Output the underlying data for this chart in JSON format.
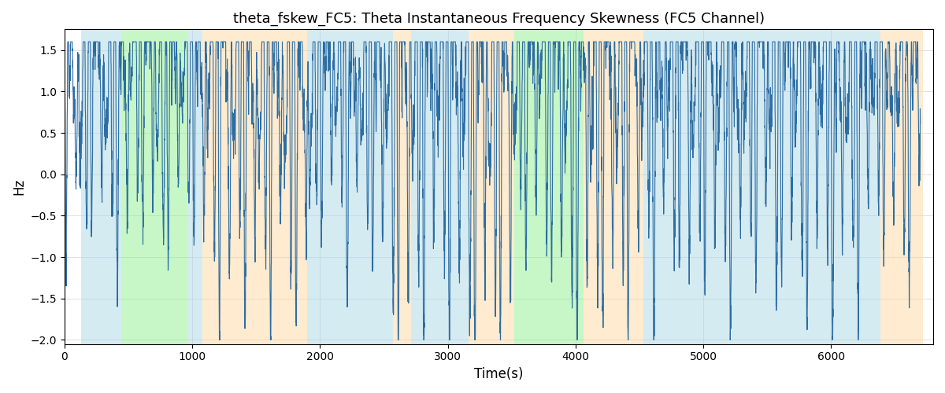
{
  "title": "theta_fskew_FC5: Theta Instantaneous Frequency Skewness (FC5 Channel)",
  "xlabel": "Time(s)",
  "ylabel": "Hz",
  "xlim": [
    0,
    6800
  ],
  "ylim": [
    -2.05,
    1.75
  ],
  "yticks": [
    -2.0,
    -1.5,
    -1.0,
    -0.5,
    0.0,
    0.5,
    1.0,
    1.5
  ],
  "xticks": [
    0,
    1000,
    2000,
    3000,
    4000,
    5000,
    6000
  ],
  "line_color": "#2d6da3",
  "line_width": 0.8,
  "bg_segments": [
    {
      "xstart": 130,
      "xend": 450,
      "color": "#add8e6",
      "alpha": 0.5
    },
    {
      "xstart": 450,
      "xend": 970,
      "color": "#90ee90",
      "alpha": 0.5
    },
    {
      "xstart": 970,
      "xend": 1080,
      "color": "#add8e6",
      "alpha": 0.5
    },
    {
      "xstart": 1080,
      "xend": 1900,
      "color": "#ffd9a0",
      "alpha": 0.5
    },
    {
      "xstart": 1900,
      "xend": 2570,
      "color": "#add8e6",
      "alpha": 0.5
    },
    {
      "xstart": 2570,
      "xend": 2710,
      "color": "#ffd9a0",
      "alpha": 0.5
    },
    {
      "xstart": 2710,
      "xend": 3160,
      "color": "#add8e6",
      "alpha": 0.5
    },
    {
      "xstart": 3160,
      "xend": 3520,
      "color": "#ffd9a0",
      "alpha": 0.5
    },
    {
      "xstart": 3520,
      "xend": 4060,
      "color": "#90ee90",
      "alpha": 0.5
    },
    {
      "xstart": 4060,
      "xend": 4530,
      "color": "#ffd9a0",
      "alpha": 0.5
    },
    {
      "xstart": 4530,
      "xend": 6390,
      "color": "#add8e6",
      "alpha": 0.5
    },
    {
      "xstart": 6390,
      "xend": 6720,
      "color": "#ffd9a0",
      "alpha": 0.5
    }
  ]
}
